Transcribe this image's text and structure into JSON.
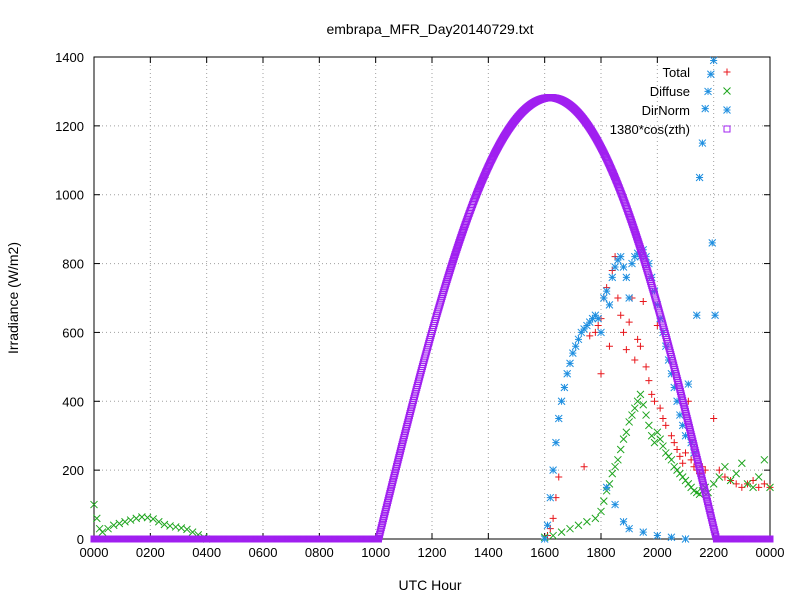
{
  "chart_data": {
    "type": "scatter",
    "title": "embrapa_MFR_Day20140729.txt",
    "xlabel": "UTC Hour",
    "ylabel": "Irradiance (W/m2)",
    "xlim": [
      0,
      24
    ],
    "ylim": [
      0,
      1400
    ],
    "x_ticks": [
      0,
      2,
      4,
      6,
      8,
      10,
      12,
      14,
      16,
      18,
      20,
      22,
      24
    ],
    "x_tick_labels": [
      "0000",
      "0200",
      "0400",
      "0600",
      "0800",
      "1000",
      "1200",
      "1400",
      "1600",
      "1800",
      "2000",
      "2200",
      "0000"
    ],
    "y_ticks": [
      0,
      200,
      400,
      600,
      800,
      1000,
      1200,
      1400
    ],
    "y_tick_labels": [
      "0",
      "200",
      "400",
      "600",
      "800",
      "1000",
      "1200",
      "1400"
    ],
    "grid": true,
    "legend_position": "top-right",
    "series": [
      {
        "name": "Total",
        "marker": "plus",
        "color": "#e8161b",
        "points": [
          [
            16.1,
            10
          ],
          [
            16.2,
            30
          ],
          [
            16.3,
            60
          ],
          [
            16.4,
            120
          ],
          [
            16.5,
            180
          ],
          [
            17.4,
            210
          ],
          [
            17.6,
            590
          ],
          [
            17.8,
            600
          ],
          [
            17.9,
            620
          ],
          [
            18.0,
            480
          ],
          [
            18.0,
            640
          ],
          [
            18.1,
            700
          ],
          [
            18.2,
            730
          ],
          [
            18.3,
            560
          ],
          [
            18.4,
            780
          ],
          [
            18.5,
            820
          ],
          [
            18.6,
            700
          ],
          [
            18.7,
            650
          ],
          [
            18.8,
            600
          ],
          [
            18.9,
            550
          ],
          [
            19.0,
            630
          ],
          [
            19.1,
            700
          ],
          [
            19.2,
            520
          ],
          [
            19.3,
            580
          ],
          [
            19.4,
            560
          ],
          [
            19.5,
            690
          ],
          [
            19.6,
            500
          ],
          [
            19.7,
            460
          ],
          [
            19.8,
            420
          ],
          [
            19.9,
            400
          ],
          [
            20.0,
            620
          ],
          [
            20.1,
            380
          ],
          [
            20.2,
            350
          ],
          [
            20.3,
            330
          ],
          [
            20.4,
            520
          ],
          [
            20.5,
            300
          ],
          [
            20.6,
            280
          ],
          [
            20.7,
            260
          ],
          [
            20.8,
            240
          ],
          [
            20.9,
            220
          ],
          [
            21.0,
            250
          ],
          [
            21.1,
            400
          ],
          [
            21.2,
            230
          ],
          [
            21.3,
            210
          ],
          [
            21.4,
            200
          ],
          [
            21.5,
            190
          ],
          [
            21.6,
            210
          ],
          [
            21.7,
            200
          ],
          [
            22.0,
            350
          ],
          [
            22.2,
            200
          ],
          [
            22.4,
            180
          ],
          [
            22.6,
            170
          ],
          [
            22.8,
            160
          ],
          [
            23.0,
            150
          ],
          [
            23.2,
            160
          ],
          [
            23.4,
            170
          ],
          [
            23.6,
            150
          ],
          [
            23.8,
            160
          ],
          [
            24.0,
            150
          ]
        ]
      },
      {
        "name": "Diffuse",
        "marker": "cross",
        "color": "#1fa51f",
        "points": [
          [
            0.0,
            100
          ],
          [
            0.1,
            60
          ],
          [
            0.2,
            30
          ],
          [
            0.3,
            20
          ],
          [
            0.5,
            30
          ],
          [
            0.7,
            40
          ],
          [
            0.9,
            45
          ],
          [
            1.1,
            50
          ],
          [
            1.3,
            55
          ],
          [
            1.5,
            60
          ],
          [
            1.7,
            64
          ],
          [
            1.9,
            62
          ],
          [
            2.1,
            58
          ],
          [
            2.3,
            50
          ],
          [
            2.5,
            42
          ],
          [
            2.7,
            38
          ],
          [
            2.9,
            35
          ],
          [
            3.1,
            32
          ],
          [
            3.3,
            28
          ],
          [
            3.5,
            20
          ],
          [
            3.7,
            12
          ],
          [
            3.9,
            5
          ],
          [
            4.0,
            0
          ],
          [
            16.0,
            5
          ],
          [
            16.3,
            10
          ],
          [
            16.6,
            20
          ],
          [
            16.9,
            30
          ],
          [
            17.2,
            40
          ],
          [
            17.5,
            50
          ],
          [
            17.8,
            60
          ],
          [
            18.0,
            80
          ],
          [
            18.1,
            110
          ],
          [
            18.2,
            140
          ],
          [
            18.3,
            160
          ],
          [
            18.4,
            190
          ],
          [
            18.5,
            210
          ],
          [
            18.6,
            230
          ],
          [
            18.7,
            260
          ],
          [
            18.8,
            290
          ],
          [
            18.9,
            310
          ],
          [
            19.0,
            340
          ],
          [
            19.1,
            360
          ],
          [
            19.2,
            380
          ],
          [
            19.3,
            400
          ],
          [
            19.4,
            420
          ],
          [
            19.5,
            390
          ],
          [
            19.6,
            360
          ],
          [
            19.7,
            330
          ],
          [
            19.8,
            300
          ],
          [
            19.9,
            280
          ],
          [
            20.0,
            310
          ],
          [
            20.1,
            290
          ],
          [
            20.2,
            270
          ],
          [
            20.3,
            250
          ],
          [
            20.4,
            240
          ],
          [
            20.5,
            230
          ],
          [
            20.6,
            210
          ],
          [
            20.7,
            200
          ],
          [
            20.8,
            190
          ],
          [
            20.9,
            180
          ],
          [
            21.0,
            170
          ],
          [
            21.1,
            160
          ],
          [
            21.2,
            150
          ],
          [
            21.3,
            140
          ],
          [
            21.4,
            135
          ],
          [
            21.5,
            130
          ],
          [
            21.6,
            140
          ],
          [
            21.7,
            150
          ],
          [
            21.8,
            135
          ],
          [
            22.0,
            160
          ],
          [
            22.2,
            180
          ],
          [
            22.4,
            210
          ],
          [
            22.6,
            170
          ],
          [
            22.8,
            190
          ],
          [
            23.0,
            220
          ],
          [
            23.2,
            160
          ],
          [
            23.4,
            150
          ],
          [
            23.6,
            180
          ],
          [
            23.8,
            230
          ],
          [
            24.0,
            150
          ]
        ]
      },
      {
        "name": "DirNorm",
        "marker": "star",
        "color": "#1f8fe0",
        "points": [
          [
            16.0,
            0
          ],
          [
            16.1,
            40
          ],
          [
            16.2,
            120
          ],
          [
            16.3,
            200
          ],
          [
            16.4,
            280
          ],
          [
            16.5,
            350
          ],
          [
            16.6,
            400
          ],
          [
            16.7,
            440
          ],
          [
            16.8,
            480
          ],
          [
            16.9,
            510
          ],
          [
            17.0,
            540
          ],
          [
            17.1,
            560
          ],
          [
            17.2,
            580
          ],
          [
            17.3,
            600
          ],
          [
            17.4,
            610
          ],
          [
            17.5,
            620
          ],
          [
            17.6,
            630
          ],
          [
            17.7,
            640
          ],
          [
            17.8,
            650
          ],
          [
            17.9,
            640
          ],
          [
            18.0,
            600
          ],
          [
            18.1,
            700
          ],
          [
            18.2,
            720
          ],
          [
            18.3,
            680
          ],
          [
            18.4,
            760
          ],
          [
            18.5,
            790
          ],
          [
            18.6,
            810
          ],
          [
            18.7,
            820
          ],
          [
            18.8,
            790
          ],
          [
            18.9,
            760
          ],
          [
            19.0,
            700
          ],
          [
            19.1,
            800
          ],
          [
            19.2,
            820
          ],
          [
            19.3,
            830
          ],
          [
            19.4,
            820
          ],
          [
            19.5,
            840
          ],
          [
            19.6,
            820
          ],
          [
            19.7,
            800
          ],
          [
            19.8,
            760
          ],
          [
            19.9,
            720
          ],
          [
            20.0,
            680
          ],
          [
            20.1,
            640
          ],
          [
            20.2,
            600
          ],
          [
            20.3,
            560
          ],
          [
            20.4,
            520
          ],
          [
            20.5,
            480
          ],
          [
            20.6,
            440
          ],
          [
            20.7,
            400
          ],
          [
            20.8,
            360
          ],
          [
            20.9,
            330
          ],
          [
            21.0,
            300
          ],
          [
            21.1,
            450
          ],
          [
            21.2,
            280
          ],
          [
            21.3,
            250
          ],
          [
            21.4,
            650
          ],
          [
            21.5,
            1050
          ],
          [
            21.6,
            1150
          ],
          [
            21.7,
            1250
          ],
          [
            21.8,
            1300
          ],
          [
            21.9,
            1350
          ],
          [
            22.0,
            1390
          ],
          [
            21.95,
            860
          ],
          [
            22.05,
            650
          ],
          [
            18.2,
            150
          ],
          [
            18.5,
            100
          ],
          [
            18.8,
            50
          ],
          [
            19.0,
            30
          ],
          [
            19.5,
            20
          ],
          [
            20.0,
            10
          ],
          [
            20.5,
            5
          ],
          [
            21.0,
            0
          ]
        ]
      },
      {
        "name": "1380*cos(zth)",
        "marker": "square",
        "color": "#a020f0",
        "curve": {
          "rise": 10.1,
          "peak_x": 16.2,
          "set": 22.1,
          "peak_y": 1282
        }
      }
    ]
  }
}
